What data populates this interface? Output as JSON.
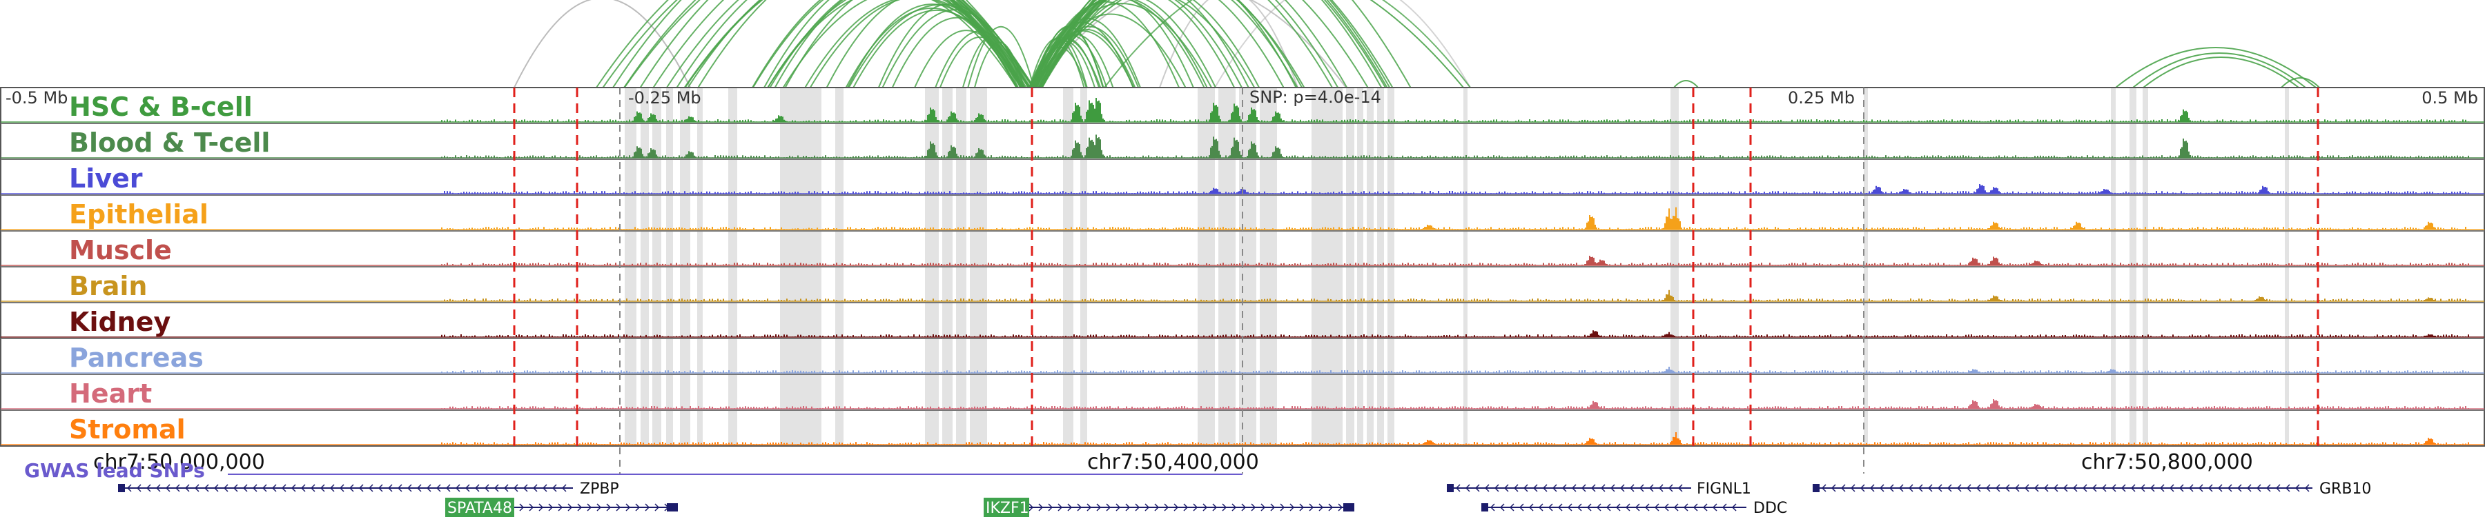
{
  "ticks": [
    {
      "label": "-0.5 Mb",
      "anchor": "start"
    },
    {
      "label": "-0.25 Mb",
      "anchor": "start"
    },
    {
      "label": "0.25 Mb",
      "anchor": "start"
    },
    {
      "label": "0.5 Mb",
      "anchor": "end"
    }
  ],
  "snp_label": "SNP: p=4.0e-14",
  "tracks": [
    {
      "name": "HSC & B-cell",
      "color": "#3f9b3f"
    },
    {
      "name": "Blood & T-cell",
      "color": "#4c8a4c"
    },
    {
      "name": "Liver",
      "color": "#4b4bd6"
    },
    {
      "name": "Epithelial",
      "color": "#f5a11a"
    },
    {
      "name": "Muscle",
      "color": "#c0504d"
    },
    {
      "name": "Brain",
      "color": "#c8941e"
    },
    {
      "name": "Kidney",
      "color": "#6b0f0f"
    },
    {
      "name": "Pancreas",
      "color": "#8aa4dc"
    },
    {
      "name": "Heart",
      "color": "#d46a7a"
    },
    {
      "name": "Stromal",
      "color": "#ff7f0e"
    }
  ],
  "gwas_label": "GWAS lead SNPs",
  "coords": [
    {
      "label": "chr7:50,000,000"
    },
    {
      "label": "chr7:50,400,000"
    },
    {
      "label": "chr7:50,800,000"
    }
  ],
  "genes": [
    {
      "name": "ZPBP",
      "strand": "-",
      "boxed": false
    },
    {
      "name": "SPATA48",
      "strand": "+",
      "boxed": true
    },
    {
      "name": "IKZF1",
      "strand": "+",
      "boxed": true
    },
    {
      "name": "FIGNL1",
      "strand": "-",
      "boxed": false
    },
    {
      "name": "DDC",
      "strand": "-",
      "boxed": false
    },
    {
      "name": "GRB10",
      "strand": "-",
      "boxed": false
    }
  ],
  "colors": {
    "arc": "#4aa34a",
    "arc_gray": "#b5b5b5",
    "highlight": "#e3e3e3",
    "red_line": "#e0201b",
    "gray_line": "#888888",
    "gwas_line": "#6a5acd",
    "gene_box": "#3fa34d",
    "gene_strand": "#1c1c6b"
  }
}
